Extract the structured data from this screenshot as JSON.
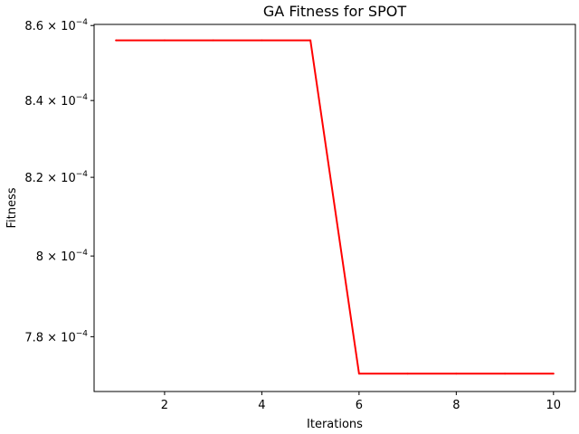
{
  "chart_data": {
    "type": "line",
    "title": "GA Fitness for SPOT",
    "xlabel": "Iterations",
    "ylabel": "Fitness",
    "x": [
      1,
      2,
      3,
      4,
      5,
      6,
      7,
      8,
      9,
      10
    ],
    "series": [
      {
        "color": "#ff0000",
        "values": [
          0.000856,
          0.000856,
          0.000856,
          0.000856,
          0.000856,
          0.000771,
          0.000771,
          0.000771,
          0.000771,
          0.000771
        ]
      }
    ],
    "xlim": [
      0.55,
      10.45
    ],
    "ylim": [
      0.0007667,
      0.0008603
    ],
    "x_ticks": [
      {
        "value": 2,
        "label": "2"
      },
      {
        "value": 4,
        "label": "4"
      },
      {
        "value": 6,
        "label": "6"
      },
      {
        "value": 8,
        "label": "8"
      },
      {
        "value": 10,
        "label": "10"
      }
    ],
    "y_ticks": [
      {
        "value": 0.00078,
        "mantissa": "7.8 × 10",
        "exponent": "−4"
      },
      {
        "value": 0.0008,
        "mantissa": "8 × 10",
        "exponent": "−4"
      },
      {
        "value": 0.00082,
        "mantissa": "8.2 × 10",
        "exponent": "−4"
      },
      {
        "value": 0.00084,
        "mantissa": "8.4 × 10",
        "exponent": "−4"
      },
      {
        "value": 0.00086,
        "mantissa": "8.6 × 10",
        "exponent": "−4"
      }
    ],
    "y_scale": "log",
    "grid": false,
    "legend": "none"
  }
}
